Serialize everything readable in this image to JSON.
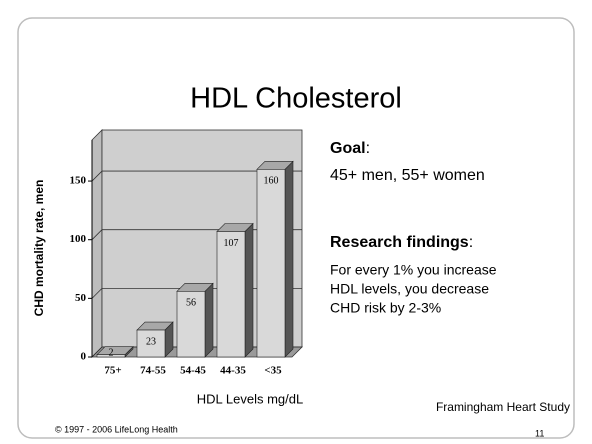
{
  "slide": {
    "title": "HDL Cholesterol",
    "goal": {
      "label": "Goal",
      "colon": ":",
      "text": "45+ men, 55+ women"
    },
    "findings": {
      "label": "Research findings",
      "colon": ":",
      "lines": [
        "For every 1% you increase",
        "HDL levels, you decrease",
        "CHD risk by 2-3%"
      ]
    },
    "source": "Framingham Heart Study",
    "footer": "© 1997 - 2006 LifeLong Health",
    "page_number": "11"
  },
  "chart_data": {
    "type": "bar",
    "x_label": "HDL Levels mg/dL",
    "y_label": "CHD mortality rate, men",
    "categories": [
      "75+",
      "74-55",
      "54-45",
      "44-35",
      "<35"
    ],
    "values": [
      2,
      23,
      56,
      107,
      160
    ],
    "ylim": [
      0,
      185
    ],
    "yticks": [
      0,
      50,
      100,
      150
    ],
    "grid": true,
    "color": "#d9d9d9"
  }
}
